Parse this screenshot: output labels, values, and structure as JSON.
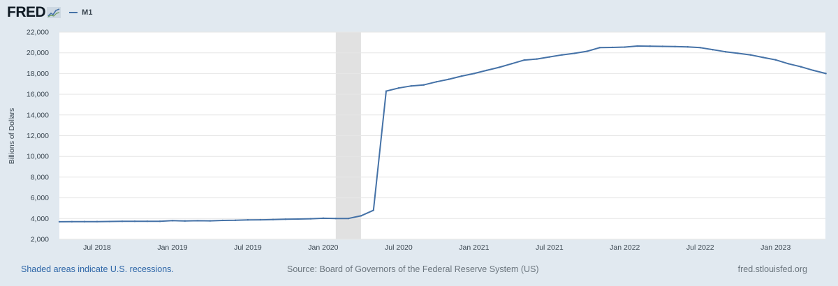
{
  "header": {
    "logo_text": "FRED",
    "legend_label": "M1",
    "series_color": "#4572a7"
  },
  "chart_data": {
    "type": "line",
    "title": "",
    "ylabel": "Billions of Dollars",
    "xlabel": "",
    "ylim": [
      2000,
      22000
    ],
    "xlim": [
      2018.25,
      2023.33
    ],
    "y_ticks": [
      2000,
      4000,
      6000,
      8000,
      10000,
      12000,
      14000,
      16000,
      18000,
      20000,
      22000
    ],
    "y_tick_labels": [
      "2,000",
      "4,000",
      "6,000",
      "8,000",
      "10,000",
      "12,000",
      "14,000",
      "16,000",
      "18,000",
      "20,000",
      "22,000"
    ],
    "x_ticks": [
      2018.5,
      2019.0,
      2019.5,
      2020.0,
      2020.5,
      2021.0,
      2021.5,
      2022.0,
      2022.5,
      2023.0
    ],
    "x_tick_labels": [
      "Jul 2018",
      "Jan 2019",
      "Jul 2019",
      "Jan 2020",
      "Jul 2020",
      "Jan 2021",
      "Jul 2021",
      "Jan 2022",
      "Jul 2022",
      "Jan 2023"
    ],
    "grid": true,
    "recessions": [
      {
        "start": 2020.083,
        "end": 2020.25
      }
    ],
    "series": [
      {
        "name": "M1",
        "color": "#4572a7",
        "x": [
          2018.25,
          2018.333,
          2018.417,
          2018.5,
          2018.583,
          2018.667,
          2018.75,
          2018.833,
          2018.917,
          2019.0,
          2019.083,
          2019.167,
          2019.25,
          2019.333,
          2019.417,
          2019.5,
          2019.583,
          2019.667,
          2019.75,
          2019.833,
          2019.917,
          2020.0,
          2020.083,
          2020.167,
          2020.25,
          2020.333,
          2020.417,
          2020.5,
          2020.583,
          2020.667,
          2020.75,
          2020.833,
          2020.917,
          2021.0,
          2021.083,
          2021.167,
          2021.25,
          2021.333,
          2021.417,
          2021.5,
          2021.583,
          2021.667,
          2021.75,
          2021.833,
          2021.917,
          2022.0,
          2022.083,
          2022.167,
          2022.25,
          2022.333,
          2022.417,
          2022.5,
          2022.583,
          2022.667,
          2022.75,
          2022.833,
          2022.917,
          2023.0,
          2023.083,
          2023.167,
          2023.25,
          2023.333
        ],
        "values": [
          3690,
          3695,
          3700,
          3705,
          3715,
          3730,
          3735,
          3740,
          3735,
          3800,
          3770,
          3790,
          3780,
          3820,
          3830,
          3870,
          3880,
          3900,
          3930,
          3950,
          3980,
          4030,
          4010,
          4010,
          4260,
          4800,
          16300,
          16600,
          16800,
          16900,
          17200,
          17450,
          17750,
          18000,
          18300,
          18600,
          18950,
          19300,
          19400,
          19600,
          19800,
          19950,
          20150,
          20500,
          20520,
          20550,
          20650,
          20640,
          20620,
          20600,
          20570,
          20500,
          20300,
          20100,
          19950,
          19800,
          19550,
          19320,
          18950,
          18650,
          18300,
          18000
        ]
      }
    ]
  },
  "footer": {
    "recession_note": "Shaded areas indicate U.S. recessions.",
    "source": "Source: Board of Governors of the Federal Reserve System (US)",
    "site": "fred.stlouisfed.org"
  }
}
